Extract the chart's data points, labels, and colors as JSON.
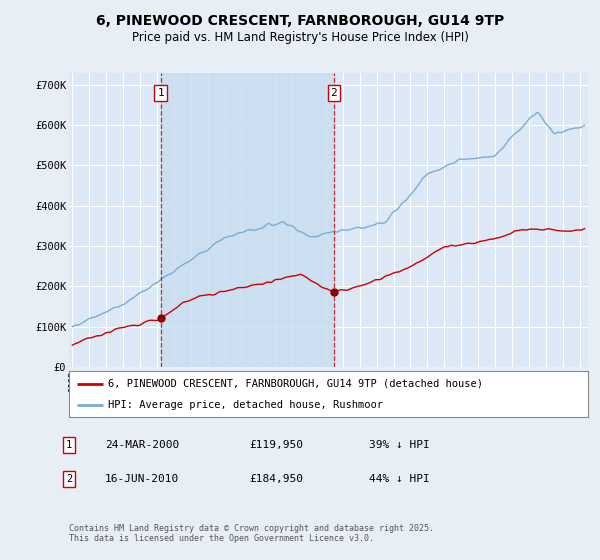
{
  "title_line1": "6, PINEWOOD CRESCENT, FARNBOROUGH, GU14 9TP",
  "title_line2": "Price paid vs. HM Land Registry's House Price Index (HPI)",
  "background_color": "#e8eef5",
  "plot_bg_color": "#dce8f5",
  "shaded_region_color": "#c8ddf0",
  "grid_color": "#ffffff",
  "ylim": [
    0,
    730000
  ],
  "yticks": [
    0,
    100000,
    200000,
    300000,
    400000,
    500000,
    600000,
    700000
  ],
  "ytick_labels": [
    "£0",
    "£100K",
    "£200K",
    "£300K",
    "£400K",
    "£500K",
    "£600K",
    "£700K"
  ],
  "sale1_date_x": 2000.22,
  "sale1_price": 119950,
  "sale2_date_x": 2010.46,
  "sale2_price": 184950,
  "red_line_color": "#cc0000",
  "blue_line_color": "#7aadd4",
  "dot_color": "#880000",
  "legend1_label": "6, PINEWOOD CRESCENT, FARNBOROUGH, GU14 9TP (detached house)",
  "legend2_label": "HPI: Average price, detached house, Rushmoor",
  "footer": "Contains HM Land Registry data © Crown copyright and database right 2025.\nThis data is licensed under the Open Government Licence v3.0.",
  "xmin": 1994.8,
  "xmax": 2025.5
}
